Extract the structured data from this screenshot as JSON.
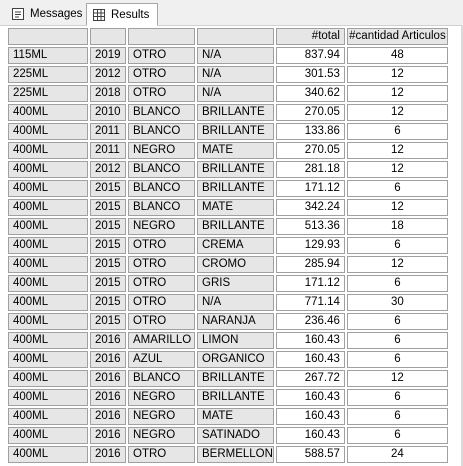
{
  "tabs": [
    {
      "label": "Messages",
      "icon": "messages-icon"
    },
    {
      "label": "Results",
      "icon": "grid-icon"
    }
  ],
  "columns": [
    "",
    "",
    "",
    "",
    "#total",
    "#cantidad Articulos"
  ],
  "rows": [
    [
      "115ML",
      "2019",
      "OTRO",
      "N/A",
      "837.94",
      "48"
    ],
    [
      "225ML",
      "2012",
      "OTRO",
      "N/A",
      "301.53",
      "12"
    ],
    [
      "225ML",
      "2018",
      "OTRO",
      "N/A",
      "340.62",
      "12"
    ],
    [
      "400ML",
      "2010",
      "BLANCO",
      "BRILLANTE",
      "270.05",
      "12"
    ],
    [
      "400ML",
      "2011",
      "BLANCO",
      "BRILLANTE",
      "133.86",
      "6"
    ],
    [
      "400ML",
      "2011",
      "NEGRO",
      "MATE",
      "270.05",
      "12"
    ],
    [
      "400ML",
      "2012",
      "BLANCO",
      "BRILLANTE",
      "281.18",
      "12"
    ],
    [
      "400ML",
      "2015",
      "BLANCO",
      "BRILLANTE",
      "171.12",
      "6"
    ],
    [
      "400ML",
      "2015",
      "BLANCO",
      "MATE",
      "342.24",
      "12"
    ],
    [
      "400ML",
      "2015",
      "NEGRO",
      "BRILLANTE",
      "513.36",
      "18"
    ],
    [
      "400ML",
      "2015",
      "OTRO",
      "CREMA",
      "129.93",
      "6"
    ],
    [
      "400ML",
      "2015",
      "OTRO",
      "CROMO",
      "285.94",
      "12"
    ],
    [
      "400ML",
      "2015",
      "OTRO",
      "GRIS",
      "171.12",
      "6"
    ],
    [
      "400ML",
      "2015",
      "OTRO",
      "N/A",
      "771.14",
      "30"
    ],
    [
      "400ML",
      "2015",
      "OTRO",
      "NARANJA",
      "236.46",
      "6"
    ],
    [
      "400ML",
      "2016",
      "AMARILLO",
      "LIMON",
      "160.43",
      "6"
    ],
    [
      "400ML",
      "2016",
      "AZUL",
      "ORGANICO",
      "160.43",
      "6"
    ],
    [
      "400ML",
      "2016",
      "BLANCO",
      "BRILLANTE",
      "267.72",
      "12"
    ],
    [
      "400ML",
      "2016",
      "NEGRO",
      "BRILLANTE",
      "160.43",
      "6"
    ],
    [
      "400ML",
      "2016",
      "NEGRO",
      "MATE",
      "160.43",
      "6"
    ],
    [
      "400ML",
      "2016",
      "NEGRO",
      "SATINADO",
      "160.43",
      "6"
    ],
    [
      "400ML",
      "2016",
      "OTRO",
      "BERMELLON",
      "588.57",
      "24"
    ]
  ]
}
